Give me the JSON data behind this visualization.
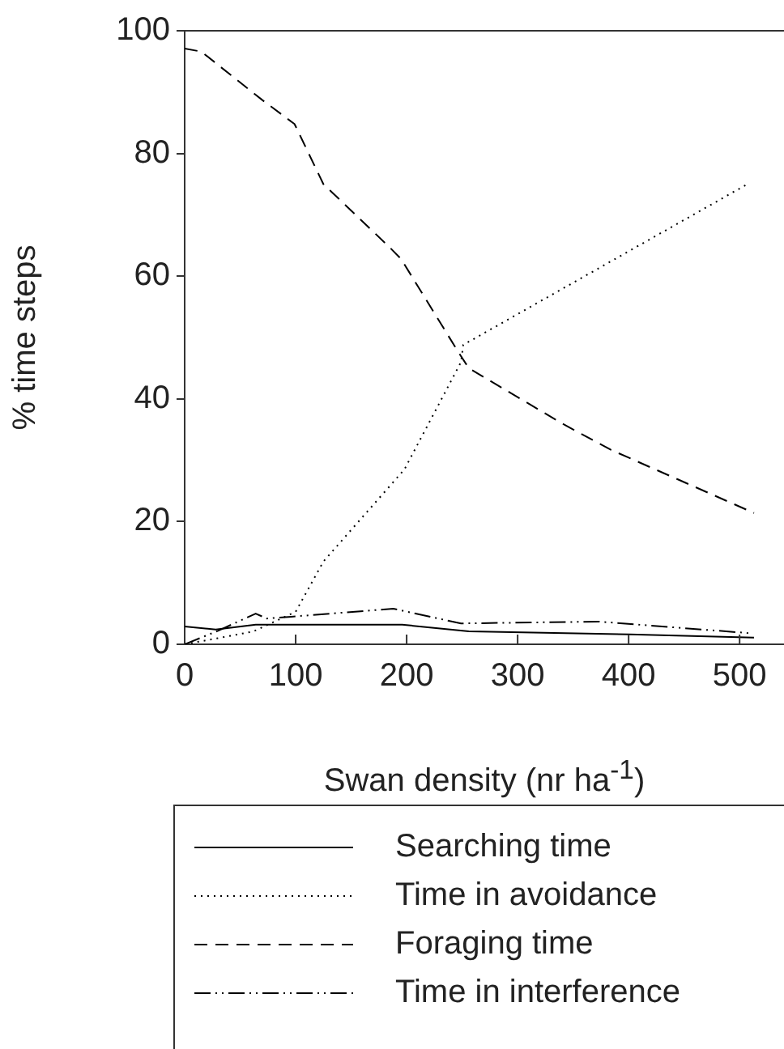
{
  "chart_data": {
    "type": "line",
    "xlabel": "Swan density (nr ha$^{-1}$)",
    "ylabel": "% time steps",
    "xlim": [
      0,
      540
    ],
    "xticks": [
      0,
      100,
      200,
      300,
      400,
      500
    ],
    "ylim": [
      0,
      100
    ],
    "yticks": [
      0,
      20,
      40,
      60,
      80,
      100
    ],
    "grid": false,
    "legend": "bottom",
    "marker": "none",
    "series": [
      {
        "name": "Searching time",
        "color": "#000000",
        "line_style": "solid",
        "x": [
          0,
          28,
          64,
          196,
          256,
          401,
          513
        ],
        "values": [
          2.9,
          2.4,
          3.2,
          3.2,
          2.1,
          1.6,
          1.1
        ]
      },
      {
        "name": "Time in avoidance",
        "color": "#000000",
        "line_style": "dotted",
        "x": [
          0,
          30,
          62,
          100,
          125,
          198,
          249,
          251,
          507
        ],
        "values": [
          0,
          1,
          2.1,
          5.3,
          13.5,
          28.5,
          46,
          48.8,
          75
        ]
      },
      {
        "name": "Foraging time",
        "color": "#000000",
        "line_style": "dashed",
        "x": [
          0,
          15,
          70,
          99,
          125,
          183,
          195,
          246,
          256,
          340,
          384,
          513
        ],
        "values": [
          97.1,
          96.6,
          88.7,
          84.8,
          75,
          65,
          62.8,
          47.8,
          45,
          36,
          31.7,
          21.4
        ]
      },
      {
        "name": "Time in interference",
        "color": "#000000",
        "line_style": "dashdot",
        "x": [
          0,
          30,
          64,
          74,
          96,
          188,
          249,
          373,
          510
        ],
        "values": [
          0,
          2.2,
          5,
          4.2,
          4.5,
          5.8,
          3.4,
          3.7,
          1.8
        ]
      }
    ]
  }
}
